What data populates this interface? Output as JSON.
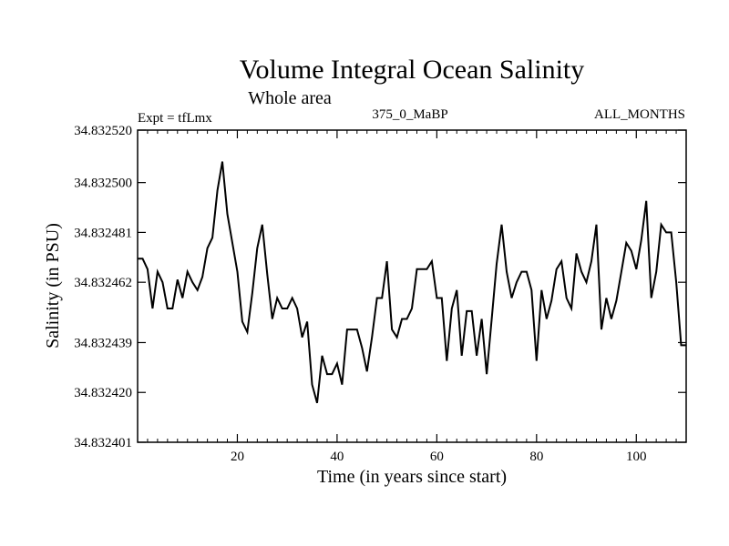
{
  "chart_data": {
    "type": "line",
    "title": "Volume Integral Ocean Salinity",
    "subtitle": "Whole area",
    "expt_label": "Expt = tfLmx",
    "run_label": "375_0_MaBP",
    "period_label": "ALL_MONTHS",
    "xlabel": "Time (in years since start)",
    "ylabel": "Salinity (in PSU)",
    "xlim": [
      0,
      110
    ],
    "ylim": [
      34.832401,
      34.83252
    ],
    "x_ticks": [
      20,
      40,
      60,
      80,
      100
    ],
    "x_tick_labels": [
      "20",
      "40",
      "60",
      "80",
      "100"
    ],
    "y_ticks": [
      34.832401,
      34.83242,
      34.832439,
      34.832462,
      34.832481,
      34.8325,
      34.83252
    ],
    "y_tick_labels": [
      "34.832401",
      "34.832420",
      "34.832439",
      "34.832462",
      "34.832481",
      "34.832500",
      "34.832520"
    ],
    "series": [
      {
        "name": "Salinity",
        "x": [
          0,
          1,
          2,
          3,
          4,
          5,
          6,
          7,
          8,
          9,
          10,
          11,
          12,
          13,
          14,
          15,
          16,
          17,
          18,
          19,
          20,
          21,
          22,
          23,
          24,
          25,
          26,
          27,
          28,
          29,
          30,
          31,
          32,
          33,
          34,
          35,
          36,
          37,
          38,
          39,
          40,
          41,
          42,
          43,
          44,
          45,
          46,
          47,
          48,
          49,
          50,
          51,
          52,
          53,
          54,
          55,
          56,
          57,
          58,
          59,
          60,
          61,
          62,
          63,
          64,
          65,
          66,
          67,
          68,
          69,
          70,
          71,
          72,
          73,
          74,
          75,
          76,
          77,
          78,
          79,
          80,
          81,
          82,
          83,
          84,
          85,
          86,
          87,
          88,
          89,
          90,
          91,
          92,
          93,
          94,
          95,
          96,
          97,
          98,
          99,
          100,
          101,
          102,
          103,
          104,
          105,
          106,
          107,
          108,
          109,
          110
        ],
        "values": [
          34.832471,
          34.832471,
          34.832467,
          34.832452,
          34.832466,
          34.832462,
          34.832452,
          34.832452,
          34.832463,
          34.832456,
          34.832466,
          34.832462,
          34.832459,
          34.832464,
          34.832475,
          34.832479,
          34.832497,
          34.832508,
          34.832488,
          34.832477,
          34.832466,
          34.832447,
          34.832443,
          34.832458,
          34.832475,
          34.832484,
          34.832465,
          34.832448,
          34.832456,
          34.832452,
          34.832452,
          34.832456,
          34.832452,
          34.832441,
          34.832447,
          34.832423,
          34.832416,
          34.832434,
          34.832427,
          34.832427,
          34.832431,
          34.832423,
          34.832444,
          34.832444,
          34.832444,
          34.832437,
          34.832428,
          34.832441,
          34.832456,
          34.832456,
          34.83247,
          34.832444,
          34.832441,
          34.832448,
          34.832448,
          34.832452,
          34.832467,
          34.832467,
          34.832467,
          34.83247,
          34.832456,
          34.832456,
          34.832432,
          34.832452,
          34.832459,
          34.832434,
          34.832451,
          34.832451,
          34.832434,
          34.832448,
          34.832427,
          34.832448,
          34.832469,
          34.832484,
          34.832466,
          34.832456,
          34.832462,
          34.832466,
          34.832466,
          34.832459,
          34.832432,
          34.832459,
          34.832448,
          34.832455,
          34.832467,
          34.83247,
          34.832456,
          34.832452,
          34.832473,
          34.832466,
          34.832462,
          34.83247,
          34.832484,
          34.832444,
          34.832456,
          34.832448,
          34.832455,
          34.832466,
          34.832477,
          34.832474,
          34.832467,
          34.832478,
          34.832493,
          34.832456,
          34.832466,
          34.832484,
          34.832481,
          34.832481,
          34.832462,
          34.832438,
          34.832438
        ]
      }
    ]
  }
}
